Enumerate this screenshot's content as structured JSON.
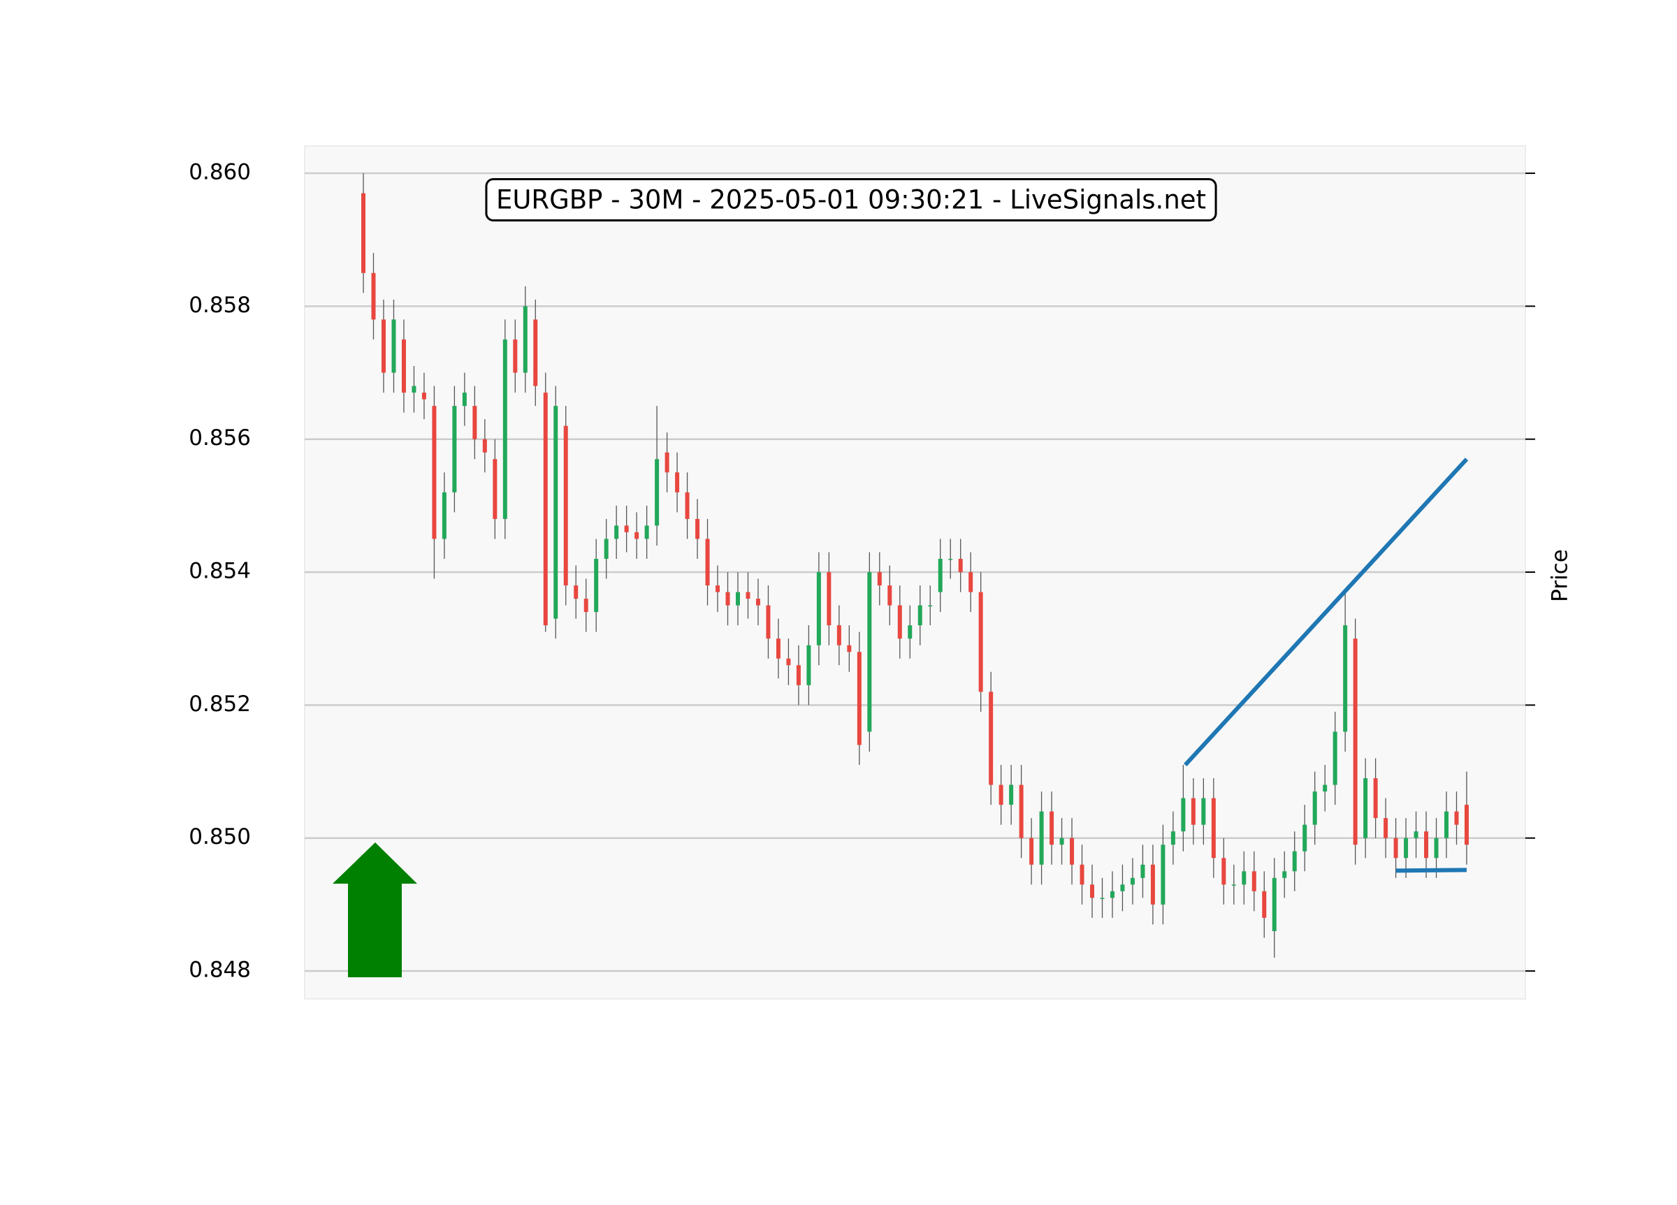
{
  "chart_data": {
    "type": "candlestick",
    "title": "EURGBP - 30M - 2025-05-01 09:30:21 - LiveSignals.net",
    "y_label": "Price",
    "ylim": [
      0.84758,
      0.86041
    ],
    "xlim": [
      -5.8,
      114.8
    ],
    "yticks": [
      0.848,
      {
        "value": 0.85,
        "label": "0.850"
      },
      0.852,
      0.854,
      0.856,
      0.858,
      {
        "value": 0.86,
        "label": "0.860"
      }
    ],
    "grid": true,
    "up_color": "#22a85a",
    "down_color": "#e8473f",
    "wick_color": "#555555",
    "open": [
      0.8597,
      0.8585,
      0.8578,
      0.857,
      0.8575,
      0.8567,
      0.8567,
      0.8565,
      0.8545,
      0.8552,
      0.8565,
      0.8565,
      0.856,
      0.8557,
      0.8548,
      0.8575,
      0.857,
      0.8578,
      0.8567,
      0.8533,
      0.8562,
      0.8538,
      0.8536,
      0.8534,
      0.8542,
      0.8545,
      0.8547,
      0.8546,
      0.8545,
      0.8547,
      0.8558,
      0.8555,
      0.8552,
      0.8548,
      0.8545,
      0.8538,
      0.8537,
      0.8535,
      0.8537,
      0.8536,
      0.8535,
      0.853,
      0.8527,
      0.8526,
      0.8523,
      0.8529,
      0.854,
      0.8532,
      0.8529,
      0.8528,
      0.8516,
      0.854,
      0.8538,
      0.8535,
      0.853,
      0.8532,
      0.8535,
      0.8537,
      0.8542,
      0.8542,
      0.854,
      0.8537,
      0.8522,
      0.8508,
      0.8505,
      0.8508,
      0.85,
      0.8496,
      0.8504,
      0.8499,
      0.85,
      0.8496,
      0.8493,
      0.8491,
      0.8491,
      0.8492,
      0.8493,
      0.8494,
      0.8496,
      0.849,
      0.8499,
      0.8501,
      0.8506,
      0.8502,
      0.8506,
      0.8497,
      0.8493,
      0.8493,
      0.8495,
      0.8492,
      0.8486,
      0.8494,
      0.8495,
      0.8498,
      0.8502,
      0.8507,
      0.8508,
      0.8516,
      0.853,
      0.85,
      0.8509,
      0.8503,
      0.85,
      0.8497,
      0.85,
      0.8501,
      0.8497,
      0.85,
      0.8504,
      0.8505
    ],
    "high": [
      0.86,
      0.8588,
      0.8581,
      0.8581,
      0.8578,
      0.8571,
      0.857,
      0.8568,
      0.8555,
      0.8568,
      0.857,
      0.8568,
      0.8563,
      0.856,
      0.8578,
      0.8578,
      0.8583,
      0.8581,
      0.857,
      0.8568,
      0.8565,
      0.8541,
      0.8539,
      0.8545,
      0.8548,
      0.855,
      0.855,
      0.8549,
      0.855,
      0.8565,
      0.8561,
      0.8558,
      0.8555,
      0.8551,
      0.8548,
      0.8541,
      0.854,
      0.854,
      0.854,
      0.8539,
      0.8538,
      0.8533,
      0.853,
      0.8529,
      0.8532,
      0.8543,
      0.8543,
      0.8535,
      0.8532,
      0.8531,
      0.8543,
      0.8543,
      0.8541,
      0.8538,
      0.8535,
      0.8538,
      0.8538,
      0.8545,
      0.8545,
      0.8545,
      0.8543,
      0.854,
      0.8525,
      0.8511,
      0.8511,
      0.8511,
      0.8503,
      0.8507,
      0.8507,
      0.8503,
      0.8503,
      0.8499,
      0.8496,
      0.8494,
      0.8495,
      0.8496,
      0.8497,
      0.8499,
      0.8499,
      0.8502,
      0.8504,
      0.8511,
      0.8509,
      0.8509,
      0.8509,
      0.85,
      0.8496,
      0.8498,
      0.8498,
      0.8495,
      0.8497,
      0.8498,
      0.8501,
      0.8505,
      0.851,
      0.8511,
      0.8519,
      0.8537,
      0.8533,
      0.8512,
      0.8512,
      0.8506,
      0.8503,
      0.8503,
      0.8504,
      0.8504,
      0.8503,
      0.8507,
      0.8507,
      0.851
    ],
    "low": [
      0.8582,
      0.8575,
      0.8567,
      0.8567,
      0.8564,
      0.8564,
      0.8563,
      0.8539,
      0.8542,
      0.8549,
      0.8562,
      0.8557,
      0.8555,
      0.8545,
      0.8545,
      0.8567,
      0.8567,
      0.8565,
      0.8531,
      0.853,
      0.8535,
      0.8533,
      0.8531,
      0.8531,
      0.8539,
      0.8542,
      0.8543,
      0.8542,
      0.8542,
      0.8544,
      0.8552,
      0.8549,
      0.8545,
      0.8542,
      0.8535,
      0.8534,
      0.8532,
      0.8532,
      0.8533,
      0.8532,
      0.8527,
      0.8524,
      0.8523,
      0.852,
      0.852,
      0.8526,
      0.8529,
      0.8526,
      0.8525,
      0.8511,
      0.8513,
      0.8535,
      0.8532,
      0.8527,
      0.8527,
      0.8529,
      0.8532,
      0.8534,
      0.8539,
      0.8537,
      0.8534,
      0.8519,
      0.8505,
      0.8502,
      0.8502,
      0.8497,
      0.8493,
      0.8493,
      0.8496,
      0.8496,
      0.8493,
      0.849,
      0.8488,
      0.8488,
      0.8488,
      0.8489,
      0.849,
      0.8491,
      0.8487,
      0.8487,
      0.8496,
      0.8498,
      0.8499,
      0.8499,
      0.8494,
      0.849,
      0.849,
      0.849,
      0.8489,
      0.8485,
      0.8482,
      0.8491,
      0.8492,
      0.8495,
      0.8499,
      0.8504,
      0.8505,
      0.8513,
      0.8496,
      0.8497,
      0.85,
      0.8497,
      0.8494,
      0.8494,
      0.8497,
      0.8494,
      0.8494,
      0.8497,
      0.8499,
      0.8496
    ],
    "close": [
      0.8585,
      0.8578,
      0.857,
      0.8578,
      0.8567,
      0.8568,
      0.8566,
      0.8545,
      0.8552,
      0.8565,
      0.8567,
      0.856,
      0.8558,
      0.8548,
      0.8575,
      0.857,
      0.858,
      0.8568,
      0.8532,
      0.8565,
      0.8538,
      0.8536,
      0.8534,
      0.8542,
      0.8545,
      0.8547,
      0.8546,
      0.8545,
      0.8547,
      0.8557,
      0.8555,
      0.8552,
      0.8548,
      0.8545,
      0.8538,
      0.8537,
      0.8535,
      0.8537,
      0.8536,
      0.8535,
      0.853,
      0.8527,
      0.8526,
      0.8523,
      0.8529,
      0.854,
      0.8532,
      0.8529,
      0.8528,
      0.8514,
      0.854,
      0.8538,
      0.8535,
      0.853,
      0.8532,
      0.8535,
      0.8535,
      0.8542,
      0.8542,
      0.854,
      0.8537,
      0.8522,
      0.8508,
      0.8505,
      0.8508,
      0.85,
      0.8496,
      0.8504,
      0.8499,
      0.85,
      0.8496,
      0.8493,
      0.8491,
      0.8491,
      0.8492,
      0.8493,
      0.8494,
      0.8496,
      0.849,
      0.8499,
      0.8501,
      0.8506,
      0.8502,
      0.8506,
      0.8497,
      0.8493,
      0.8493,
      0.8495,
      0.8492,
      0.8488,
      0.8494,
      0.8495,
      0.8498,
      0.8502,
      0.8507,
      0.8508,
      0.8516,
      0.8532,
      0.8499,
      0.8509,
      0.8503,
      0.85,
      0.8497,
      0.85,
      0.8501,
      0.8497,
      0.85,
      0.8504,
      0.8502,
      0.8499
    ],
    "trendlines": [
      {
        "color": "#1f77b4",
        "x": [
          81.2,
          109
        ],
        "y": [
          0.8511,
          0.8557
        ]
      },
      {
        "color": "#1f77b4",
        "x": [
          102,
          109
        ],
        "y": [
          0.84951,
          0.84952
        ]
      }
    ]
  }
}
